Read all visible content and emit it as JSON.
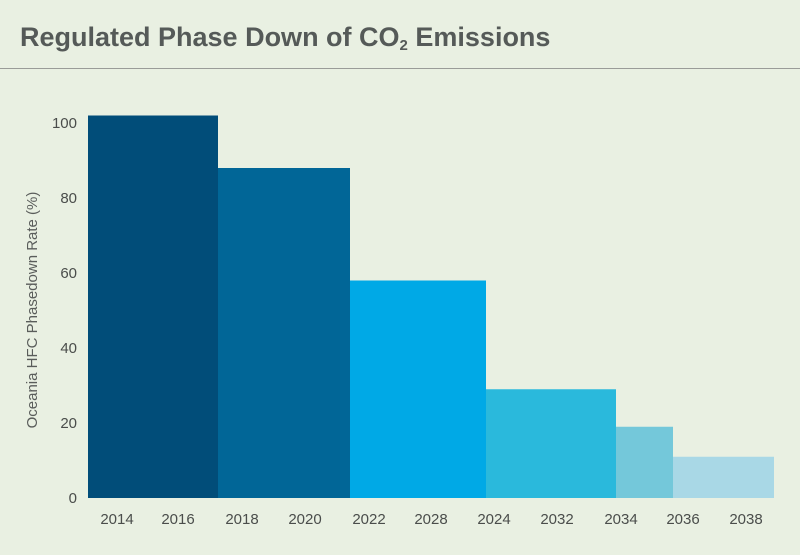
{
  "title": {
    "main": "Regulated Phase Down of CO",
    "subscript": "2",
    "suffix": " Emissions"
  },
  "chart_data": {
    "type": "bar",
    "title": "Regulated Phase Down of CO2 Emissions",
    "xlabel": "",
    "ylabel": "Oceania HFC Phasedown Rate (%)",
    "ylim": [
      0,
      100
    ],
    "yticks": [
      0,
      20,
      40,
      60,
      80,
      100
    ],
    "grid": false,
    "xtick_labels": [
      "2014",
      "2016",
      "2018",
      "2020",
      "2022",
      "2028",
      "2024",
      "2032",
      "2034",
      "2036",
      "2038"
    ],
    "bars": [
      {
        "label_start": "2014",
        "label_end": "2016",
        "value": 102,
        "color": "#014d79"
      },
      {
        "label_start": "2018",
        "label_end": "2020",
        "value": 88,
        "color": "#016697"
      },
      {
        "label_start": "2022",
        "label_end": "2028",
        "value": 58,
        "color": "#00a9e6"
      },
      {
        "label_start": "2024",
        "label_end": "2032",
        "value": 29,
        "color": "#2ab9dc"
      },
      {
        "label_start": "2034",
        "label_end": "",
        "value": 19,
        "color": "#74c8da"
      },
      {
        "label_start": "2036",
        "label_end": "2038",
        "value": 11,
        "color": "#a9d8e6"
      }
    ]
  }
}
